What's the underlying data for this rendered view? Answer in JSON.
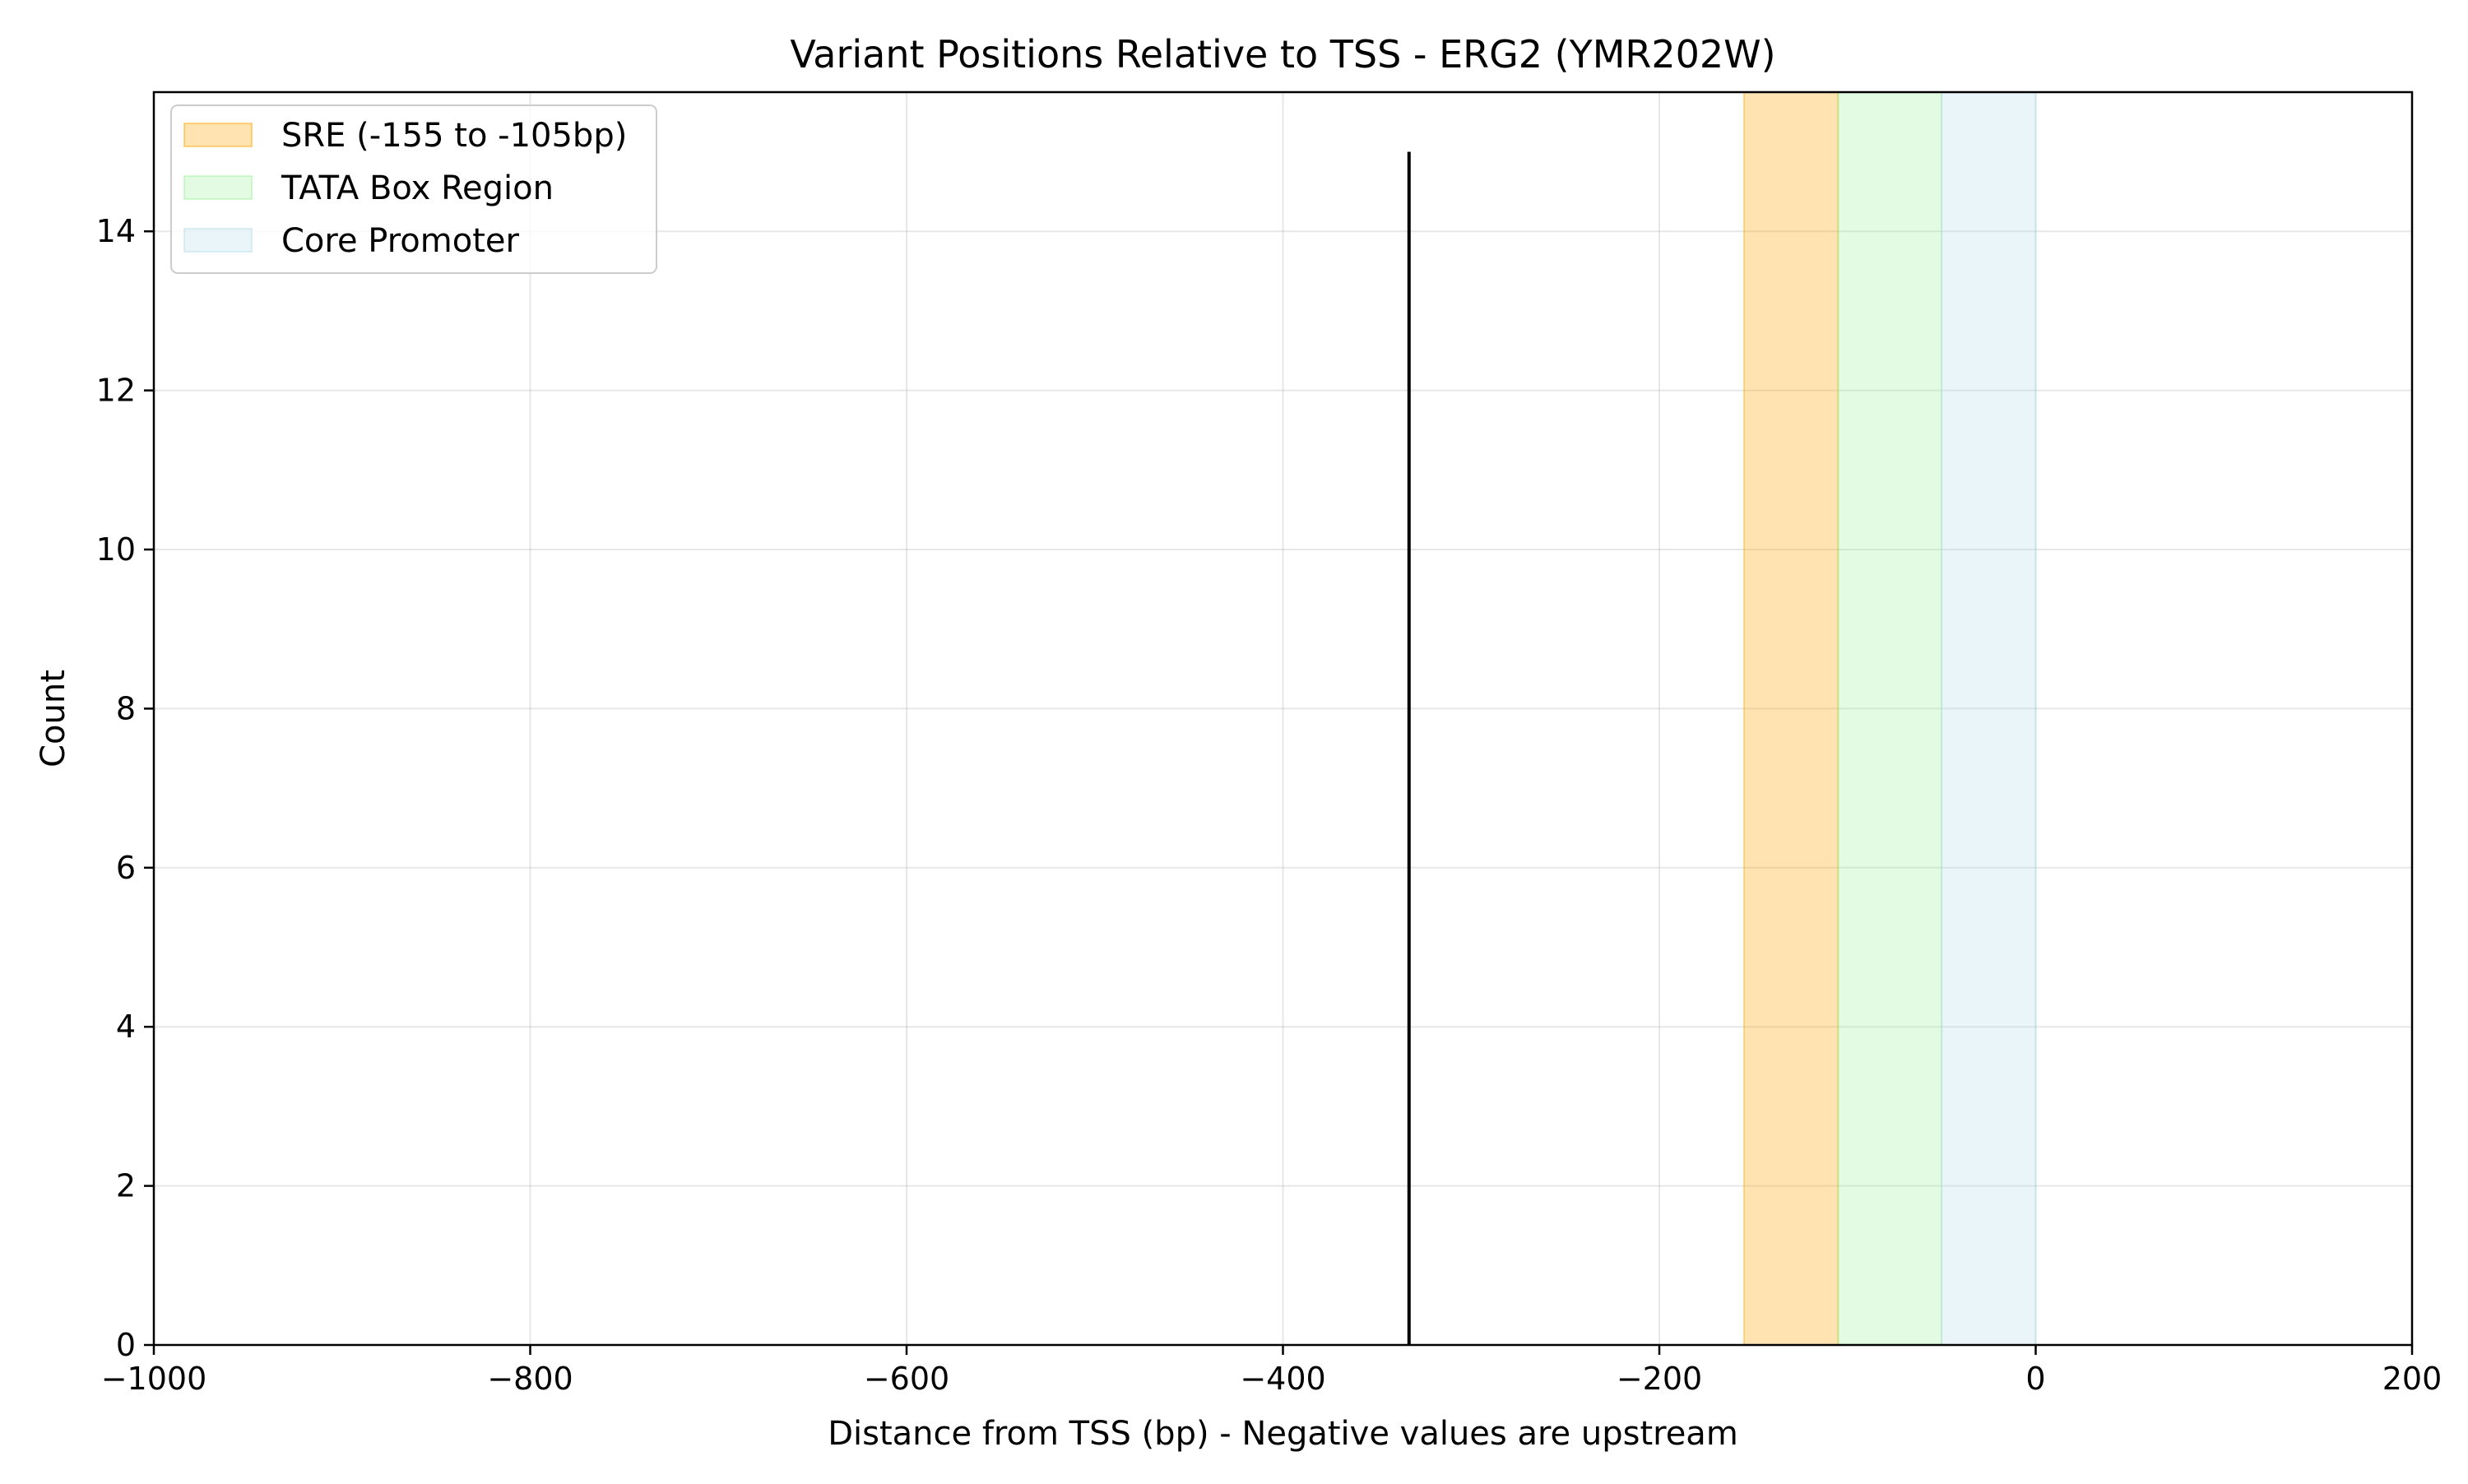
{
  "chart_data": {
    "type": "bar",
    "title": "Variant Positions Relative to TSS - ERG2 (YMR202W)",
    "xlabel": "Distance from TSS (bp) - Negative values are upstream",
    "ylabel": "Count",
    "xlim": [
      -1000,
      200
    ],
    "ylim": [
      0,
      15.75
    ],
    "xticks": [
      -1000,
      -800,
      -600,
      -400,
      -200,
      0,
      200
    ],
    "xtick_labels": [
      "−1000",
      "−800",
      "−600",
      "−400",
      "−200",
      "0",
      "200"
    ],
    "yticks": [
      0,
      2,
      4,
      6,
      8,
      10,
      12,
      14
    ],
    "ytick_labels": [
      "0",
      "2",
      "4",
      "6",
      "8",
      "10",
      "12",
      "14"
    ],
    "grid": true,
    "legend_position": "top-left",
    "bars": [
      {
        "x": -333,
        "value": 15,
        "color": "#000000"
      }
    ],
    "regions": [
      {
        "label": "SRE (-155 to -105bp)",
        "start": -155,
        "end": -105,
        "color": "#FFA500",
        "alpha": 0.3
      },
      {
        "label": "TATA Box Region",
        "start": -105,
        "end": -50,
        "color": "#90EE90",
        "alpha": 0.25
      },
      {
        "label": "Core Promoter",
        "start": -50,
        "end": 0,
        "color": "#ADD8E6",
        "alpha": 0.25
      }
    ]
  }
}
